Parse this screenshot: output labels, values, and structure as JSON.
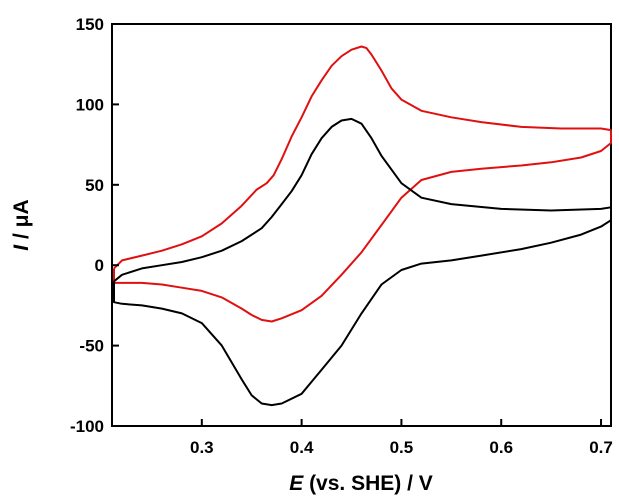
{
  "chart_data": {
    "type": "line",
    "title": "",
    "xlabel_italic": "E",
    "xlabel_rest": " (vs. SHE) / V",
    "ylabel_italic": "I",
    "ylabel_rest": " / μA",
    "xlim": [
      0.21,
      0.71
    ],
    "ylim": [
      -100,
      150
    ],
    "xticks": [
      0.3,
      0.4,
      0.5,
      0.6,
      0.7
    ],
    "xtick_labels": [
      "0.3",
      "0.4",
      "0.5",
      "0.6",
      "0.7"
    ],
    "yticks": [
      -100,
      -50,
      0,
      50,
      100,
      150
    ],
    "ytick_labels": [
      "-100",
      "-50",
      "0",
      "50",
      "100",
      "150"
    ],
    "grid": false,
    "legend": "none",
    "series": [
      {
        "color": "#e01010",
        "x": [
          0.212,
          0.22,
          0.24,
          0.26,
          0.28,
          0.3,
          0.32,
          0.34,
          0.355,
          0.365,
          0.372,
          0.38,
          0.39,
          0.4,
          0.41,
          0.42,
          0.43,
          0.44,
          0.45,
          0.46,
          0.465,
          0.47,
          0.48,
          0.49,
          0.5,
          0.52,
          0.55,
          0.58,
          0.62,
          0.66,
          0.7,
          0.71,
          0.71,
          0.7,
          0.68,
          0.65,
          0.62,
          0.58,
          0.55,
          0.52,
          0.5,
          0.48,
          0.46,
          0.44,
          0.42,
          0.4,
          0.38,
          0.37,
          0.36,
          0.35,
          0.34,
          0.32,
          0.3,
          0.28,
          0.26,
          0.24,
          0.22,
          0.212,
          0.212
        ],
        "y": [
          -2,
          3,
          6,
          9,
          13,
          18,
          26,
          37,
          47,
          51,
          56,
          66,
          80,
          92,
          105,
          115,
          124,
          130,
          134,
          136,
          135,
          131,
          121,
          110,
          103,
          96,
          92,
          89,
          86,
          85,
          85,
          84,
          76,
          71,
          67,
          64,
          62,
          60,
          58,
          53,
          42,
          25,
          8,
          -6,
          -19,
          -28,
          -33,
          -35,
          -34,
          -31,
          -27,
          -20,
          -16,
          -14,
          -12,
          -11,
          -11,
          -11,
          -2
        ]
      },
      {
        "color": "#000000",
        "x": [
          0.212,
          0.22,
          0.24,
          0.26,
          0.28,
          0.3,
          0.32,
          0.34,
          0.36,
          0.37,
          0.38,
          0.39,
          0.4,
          0.41,
          0.42,
          0.43,
          0.44,
          0.45,
          0.46,
          0.47,
          0.48,
          0.5,
          0.52,
          0.55,
          0.6,
          0.65,
          0.7,
          0.71,
          0.71,
          0.7,
          0.68,
          0.65,
          0.62,
          0.58,
          0.55,
          0.52,
          0.5,
          0.48,
          0.46,
          0.44,
          0.42,
          0.4,
          0.38,
          0.37,
          0.36,
          0.35,
          0.34,
          0.32,
          0.3,
          0.28,
          0.26,
          0.24,
          0.22,
          0.212,
          0.212
        ],
        "y": [
          -10,
          -6,
          -2,
          0,
          2,
          5,
          9,
          15,
          23,
          30,
          38,
          46,
          56,
          69,
          79,
          86,
          90,
          91,
          88,
          79,
          68,
          51,
          42,
          38,
          35,
          34,
          35,
          36,
          28,
          24,
          19,
          14,
          10,
          6,
          3,
          1,
          -3,
          -12,
          -30,
          -50,
          -65,
          -80,
          -86,
          -87,
          -86,
          -81,
          -71,
          -50,
          -36,
          -30,
          -27,
          -25,
          -24,
          -23,
          -10
        ]
      }
    ]
  }
}
